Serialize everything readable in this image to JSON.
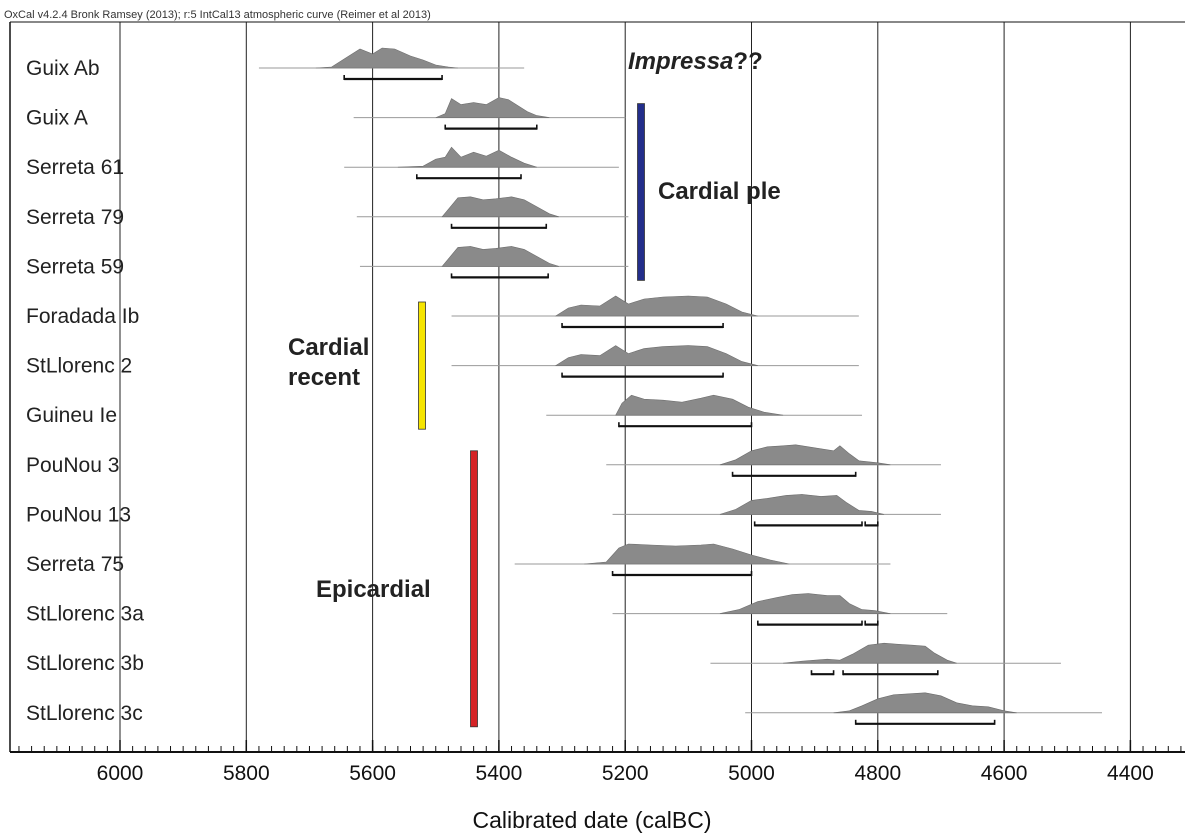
{
  "header": "OxCal v4.2.4 Bronk Ramsey (2013); r:5 IntCal13 atmospheric curve (Reimer et al 2013)",
  "chart_data": {
    "type": "range-distribution",
    "xlabel": "Calibrated date (calBC)",
    "xlim": [
      6160,
      4310
    ],
    "x_reversed": true,
    "grid": "vertical",
    "x_ticks": [
      6000,
      5800,
      5600,
      5400,
      5200,
      5000,
      4800,
      4600,
      4400
    ],
    "x_tick_labels": [
      "6000",
      "5800",
      "5600",
      "5400",
      "5200",
      "5000",
      "4800",
      "4600",
      "4400"
    ],
    "distribution_color": "#8a8a8a",
    "samples": [
      {
        "label": "Guix Ab",
        "line": [
          5780,
          5360
        ],
        "dist": [
          [
            5690,
            0
          ],
          [
            5665,
            0.05
          ],
          [
            5640,
            0.55
          ],
          [
            5620,
            0.95
          ],
          [
            5600,
            0.7
          ],
          [
            5585,
            1.0
          ],
          [
            5565,
            0.95
          ],
          [
            5540,
            0.6
          ],
          [
            5520,
            0.4
          ],
          [
            5500,
            0.15
          ],
          [
            5480,
            0.05
          ],
          [
            5465,
            0
          ]
        ],
        "ranges": [
          [
            5645,
            5490
          ]
        ]
      },
      {
        "label": "Guix A",
        "line": [
          5630,
          5200
        ],
        "dist": [
          [
            5500,
            0
          ],
          [
            5485,
            0.2
          ],
          [
            5475,
            0.95
          ],
          [
            5460,
            0.65
          ],
          [
            5440,
            0.75
          ],
          [
            5420,
            0.65
          ],
          [
            5400,
            1.0
          ],
          [
            5385,
            0.9
          ],
          [
            5370,
            0.6
          ],
          [
            5355,
            0.3
          ],
          [
            5340,
            0.1
          ],
          [
            5320,
            0
          ]
        ],
        "ranges": [
          [
            5485,
            5340
          ]
        ]
      },
      {
        "label": "Serreta 61",
        "line": [
          5645,
          5210
        ],
        "dist": [
          [
            5560,
            0
          ],
          [
            5520,
            0.05
          ],
          [
            5500,
            0.4
          ],
          [
            5485,
            0.5
          ],
          [
            5475,
            1.0
          ],
          [
            5460,
            0.5
          ],
          [
            5440,
            0.75
          ],
          [
            5420,
            0.55
          ],
          [
            5400,
            0.85
          ],
          [
            5380,
            0.5
          ],
          [
            5360,
            0.2
          ],
          [
            5340,
            0
          ]
        ],
        "ranges": [
          [
            5530,
            5365
          ]
        ]
      },
      {
        "label": "Serreta 79",
        "line": [
          5625,
          5195
        ],
        "dist": [
          [
            5490,
            0
          ],
          [
            5478,
            0.45
          ],
          [
            5465,
            0.95
          ],
          [
            5445,
            1.0
          ],
          [
            5425,
            0.85
          ],
          [
            5405,
            0.9
          ],
          [
            5380,
            1.0
          ],
          [
            5360,
            0.85
          ],
          [
            5340,
            0.5
          ],
          [
            5320,
            0.15
          ],
          [
            5305,
            0
          ]
        ],
        "ranges": [
          [
            5475,
            5325
          ]
        ]
      },
      {
        "label": "Serreta 59",
        "line": [
          5620,
          5195
        ],
        "dist": [
          [
            5490,
            0
          ],
          [
            5478,
            0.45
          ],
          [
            5465,
            0.95
          ],
          [
            5445,
            1.0
          ],
          [
            5425,
            0.85
          ],
          [
            5405,
            0.9
          ],
          [
            5380,
            1.0
          ],
          [
            5360,
            0.85
          ],
          [
            5340,
            0.5
          ],
          [
            5320,
            0.15
          ],
          [
            5305,
            0
          ]
        ],
        "ranges": [
          [
            5475,
            5322
          ]
        ]
      },
      {
        "label": "Foradada Ib",
        "line": [
          5475,
          4830
        ],
        "dist": [
          [
            5310,
            0
          ],
          [
            5290,
            0.4
          ],
          [
            5270,
            0.55
          ],
          [
            5240,
            0.5
          ],
          [
            5215,
            1.0
          ],
          [
            5195,
            0.6
          ],
          [
            5170,
            0.85
          ],
          [
            5140,
            0.95
          ],
          [
            5100,
            1.0
          ],
          [
            5070,
            0.95
          ],
          [
            5040,
            0.6
          ],
          [
            5015,
            0.2
          ],
          [
            4990,
            0
          ]
        ],
        "ranges": [
          [
            5300,
            5045
          ]
        ]
      },
      {
        "label": "StLlorenc 2",
        "line": [
          5475,
          4830
        ],
        "dist": [
          [
            5310,
            0
          ],
          [
            5290,
            0.4
          ],
          [
            5270,
            0.55
          ],
          [
            5240,
            0.5
          ],
          [
            5215,
            1.0
          ],
          [
            5195,
            0.6
          ],
          [
            5170,
            0.85
          ],
          [
            5140,
            0.95
          ],
          [
            5100,
            1.0
          ],
          [
            5070,
            0.95
          ],
          [
            5040,
            0.6
          ],
          [
            5015,
            0.2
          ],
          [
            4990,
            0
          ]
        ],
        "ranges": [
          [
            5300,
            5045
          ]
        ]
      },
      {
        "label": "Guineu Ie",
        "line": [
          5325,
          4825
        ],
        "dist": [
          [
            5215,
            0
          ],
          [
            5205,
            0.6
          ],
          [
            5190,
            1.0
          ],
          [
            5170,
            0.8
          ],
          [
            5140,
            0.75
          ],
          [
            5110,
            0.65
          ],
          [
            5080,
            0.85
          ],
          [
            5060,
            1.0
          ],
          [
            5030,
            0.8
          ],
          [
            5005,
            0.4
          ],
          [
            4980,
            0.15
          ],
          [
            4950,
            0
          ]
        ],
        "ranges": [
          [
            5210,
            5000
          ]
        ]
      },
      {
        "label": "PouNou 3",
        "line": [
          5230,
          4700
        ],
        "dist": [
          [
            5050,
            0
          ],
          [
            5025,
            0.25
          ],
          [
            5000,
            0.7
          ],
          [
            4975,
            0.9
          ],
          [
            4950,
            0.95
          ],
          [
            4930,
            1.0
          ],
          [
            4900,
            0.85
          ],
          [
            4870,
            0.7
          ],
          [
            4860,
            0.95
          ],
          [
            4845,
            0.55
          ],
          [
            4830,
            0.2
          ],
          [
            4800,
            0.1
          ],
          [
            4780,
            0
          ]
        ],
        "ranges": [
          [
            5030,
            4835
          ]
        ]
      },
      {
        "label": "PouNou 13",
        "line": [
          5220,
          4700
        ],
        "dist": [
          [
            5050,
            0
          ],
          [
            5025,
            0.25
          ],
          [
            5000,
            0.7
          ],
          [
            4975,
            0.8
          ],
          [
            4945,
            0.95
          ],
          [
            4920,
            1.0
          ],
          [
            4890,
            0.9
          ],
          [
            4865,
            0.95
          ],
          [
            4850,
            0.6
          ],
          [
            4830,
            0.2
          ],
          [
            4810,
            0.15
          ],
          [
            4790,
            0
          ]
        ],
        "ranges": [
          [
            4995,
            4825
          ],
          [
            4820,
            4800
          ]
        ]
      },
      {
        "label": "Serreta 75",
        "line": [
          5375,
          4780
        ],
        "dist": [
          [
            5265,
            0
          ],
          [
            5230,
            0.1
          ],
          [
            5210,
            0.8
          ],
          [
            5195,
            1.0
          ],
          [
            5160,
            0.95
          ],
          [
            5120,
            0.9
          ],
          [
            5080,
            0.95
          ],
          [
            5060,
            1.0
          ],
          [
            5030,
            0.75
          ],
          [
            5000,
            0.45
          ],
          [
            4970,
            0.2
          ],
          [
            4940,
            0
          ]
        ],
        "ranges": [
          [
            5220,
            5000
          ]
        ]
      },
      {
        "label": "StLlorenc 3a",
        "line": [
          5220,
          4690
        ],
        "dist": [
          [
            5050,
            0
          ],
          [
            5020,
            0.2
          ],
          [
            4990,
            0.6
          ],
          [
            4960,
            0.8
          ],
          [
            4935,
            0.95
          ],
          [
            4910,
            1.0
          ],
          [
            4880,
            0.9
          ],
          [
            4860,
            0.9
          ],
          [
            4845,
            0.5
          ],
          [
            4825,
            0.2
          ],
          [
            4805,
            0.15
          ],
          [
            4780,
            0
          ]
        ],
        "ranges": [
          [
            4990,
            4825
          ],
          [
            4820,
            4800
          ]
        ]
      },
      {
        "label": "StLlorenc 3b",
        "line": [
          5065,
          4510
        ],
        "dist": [
          [
            4950,
            0
          ],
          [
            4920,
            0.1
          ],
          [
            4880,
            0.2
          ],
          [
            4860,
            0.15
          ],
          [
            4840,
            0.45
          ],
          [
            4815,
            0.9
          ],
          [
            4790,
            1.0
          ],
          [
            4770,
            0.95
          ],
          [
            4745,
            0.9
          ],
          [
            4725,
            0.85
          ],
          [
            4710,
            0.5
          ],
          [
            4690,
            0.15
          ],
          [
            4675,
            0
          ]
        ],
        "ranges": [
          [
            4905,
            4870
          ],
          [
            4855,
            4705
          ]
        ]
      },
      {
        "label": "StLlorenc 3c",
        "line": [
          5010,
          4445
        ],
        "dist": [
          [
            4870,
            0
          ],
          [
            4845,
            0.1
          ],
          [
            4825,
            0.35
          ],
          [
            4800,
            0.7
          ],
          [
            4775,
            0.9
          ],
          [
            4750,
            0.95
          ],
          [
            4725,
            1.0
          ],
          [
            4700,
            0.85
          ],
          [
            4675,
            0.5
          ],
          [
            4650,
            0.35
          ],
          [
            4625,
            0.3
          ],
          [
            4600,
            0.1
          ],
          [
            4580,
            0
          ]
        ],
        "ranges": [
          [
            4835,
            4615
          ]
        ]
      }
    ],
    "phases": [
      {
        "label": "Impressa",
        "suffix": "??",
        "color": "",
        "from_row": 0,
        "to_row": 0
      },
      {
        "label": "Cardial ple",
        "color": "#232e8b",
        "from_row": 1,
        "to_row": 4
      },
      {
        "label": "Cardial",
        "label2": "recent",
        "color": "#f5e400",
        "from_row": 5,
        "to_row": 7
      },
      {
        "label": "Epicardial",
        "color": "#d52326",
        "from_row": 8,
        "to_row": 13
      }
    ]
  }
}
